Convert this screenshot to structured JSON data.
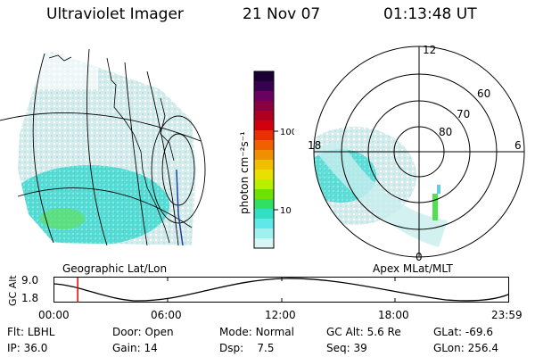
{
  "header": {
    "instrument": "Ultraviolet Imager",
    "date": "21 Nov 07",
    "time": "01:13:48 UT"
  },
  "left_panel": {
    "caption": "Geographic Lat/Lon"
  },
  "right_panel": {
    "caption": "Apex MLat/MLT",
    "lat_labels": [
      "60",
      "70",
      "80"
    ],
    "mlt_labels": {
      "top": "12",
      "left": "18",
      "right": "6",
      "bottom": "0"
    }
  },
  "colorbar": {
    "unit_label": "photon cm⁻²s⁻¹",
    "tick_labels": [
      "100",
      "10"
    ],
    "colors": [
      "#1a0033",
      "#3a0050",
      "#6a0060",
      "#8a0040",
      "#b00020",
      "#d00010",
      "#e83000",
      "#f06000",
      "#f09000",
      "#f0c000",
      "#e8e000",
      "#b8f000",
      "#70e000",
      "#30e060",
      "#30e0c0",
      "#60e8e8",
      "#a0f0f0",
      "#d8f4f4"
    ]
  },
  "altitude_plot": {
    "ylabel": "GC Alt",
    "y_ticks": [
      "9.0",
      "1.8"
    ],
    "x_ticks": [
      "00:00",
      "06:00",
      "12:00",
      "18:00",
      "23:59"
    ],
    "current_time_hours": 1.23
  },
  "info": {
    "flt_label": "Flt:",
    "flt": "LBHL",
    "ip_label": "IP:",
    "ip": "36.0",
    "door_label": "Door:",
    "door": "Open",
    "gain_label": "Gain:",
    "gain": "14",
    "mode_label": "Mode:",
    "mode": "Normal",
    "dsp_label": "Dsp:",
    "dsp": "7.5",
    "gcalt_label": "GC Alt:",
    "gcalt": "5.6 Re",
    "seq_label": "Seq:",
    "seq": "39",
    "glat_label": "GLat:",
    "glat": "-69.6",
    "glon_label": "GLon:",
    "glon": "256.4"
  }
}
